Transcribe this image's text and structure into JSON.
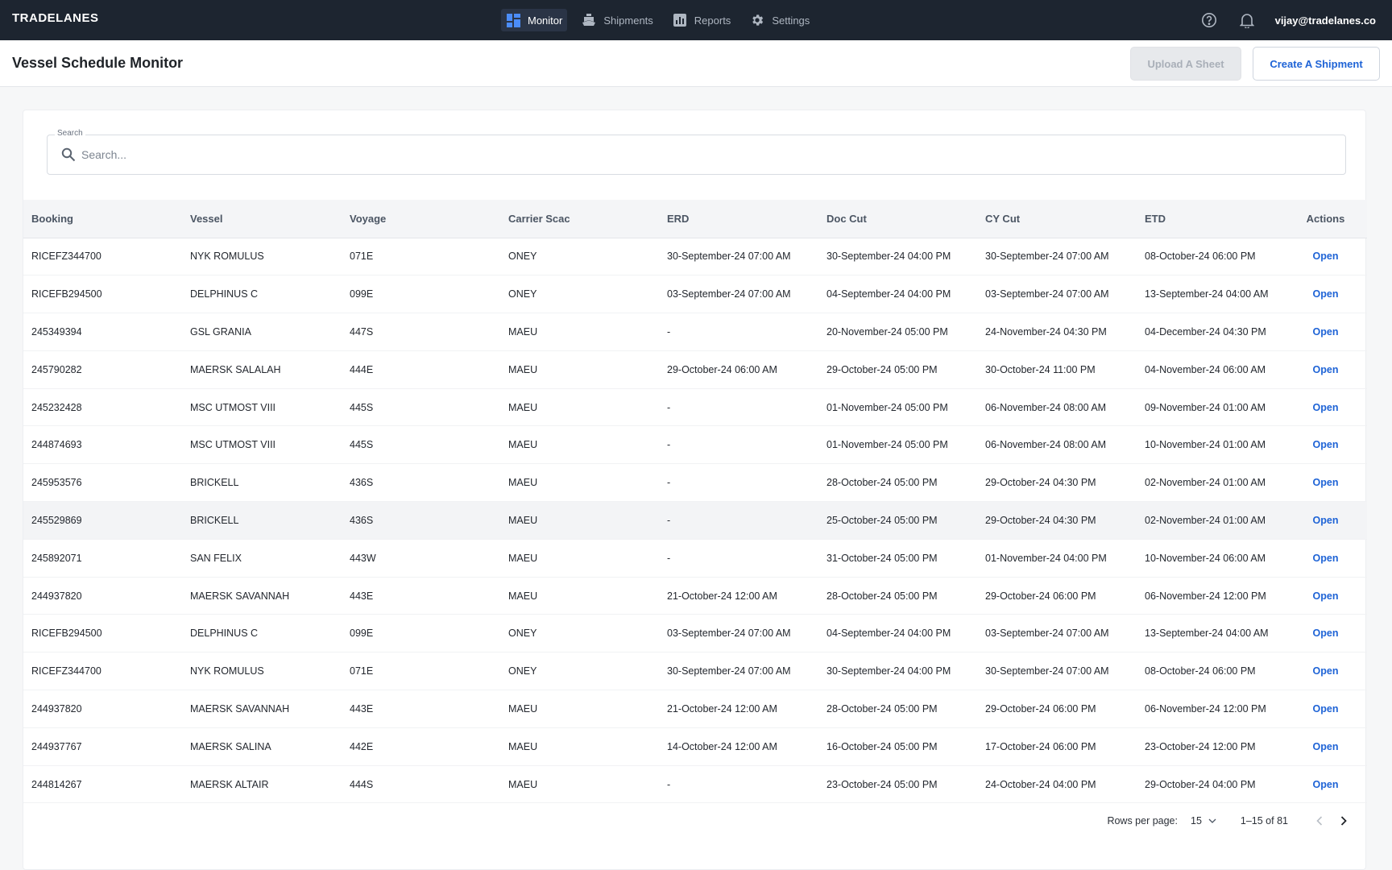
{
  "app": {
    "logo": "TRADELANES",
    "nav": [
      {
        "label": "Monitor",
        "icon": "dashboard-icon",
        "active": true
      },
      {
        "label": "Shipments",
        "icon": "ship-icon",
        "active": false
      },
      {
        "label": "Reports",
        "icon": "reports-icon",
        "active": false
      },
      {
        "label": "Settings",
        "icon": "gear-icon",
        "active": false
      }
    ],
    "user_email": "vijay@tradelanes.co"
  },
  "header": {
    "title": "Vessel Schedule Monitor",
    "upload_label": "Upload A Sheet",
    "create_label": "Create A Shipment"
  },
  "search": {
    "label": "Search",
    "placeholder": "Search...",
    "value": ""
  },
  "table": {
    "columns": [
      "Booking",
      "Vessel",
      "Voyage",
      "Carrier Scac",
      "ERD",
      "Doc Cut",
      "CY Cut",
      "ETD",
      "Actions"
    ],
    "action_label": "Open",
    "rows": [
      [
        "RICEFZ344700",
        "NYK ROMULUS",
        "071E",
        "ONEY",
        "30-September-24 07:00 AM",
        "30-September-24 04:00 PM",
        "30-September-24 07:00 AM",
        "08-October-24 06:00 PM"
      ],
      [
        "RICEFB294500",
        "DELPHINUS C",
        "099E",
        "ONEY",
        "03-September-24 07:00 AM",
        "04-September-24 04:00 PM",
        "03-September-24 07:00 AM",
        "13-September-24 04:00 AM"
      ],
      [
        "245349394",
        "GSL GRANIA",
        "447S",
        "MAEU",
        "-",
        "20-November-24 05:00 PM",
        "24-November-24 04:30 PM",
        "04-December-24 04:30 PM"
      ],
      [
        "245790282",
        "MAERSK SALALAH",
        "444E",
        "MAEU",
        "29-October-24 06:00 AM",
        "29-October-24 05:00 PM",
        "30-October-24 11:00 PM",
        "04-November-24 06:00 AM"
      ],
      [
        "245232428",
        "MSC UTMOST VIII",
        "445S",
        "MAEU",
        "-",
        "01-November-24 05:00 PM",
        "06-November-24 08:00 AM",
        "09-November-24 01:00 AM"
      ],
      [
        "244874693",
        "MSC UTMOST VIII",
        "445S",
        "MAEU",
        "-",
        "01-November-24 05:00 PM",
        "06-November-24 08:00 AM",
        "10-November-24 01:00 AM"
      ],
      [
        "245953576",
        "BRICKELL",
        "436S",
        "MAEU",
        "-",
        "28-October-24 05:00 PM",
        "29-October-24 04:30 PM",
        "02-November-24 01:00 AM"
      ],
      [
        "245529869",
        "BRICKELL",
        "436S",
        "MAEU",
        "-",
        "25-October-24 05:00 PM",
        "29-October-24 04:30 PM",
        "02-November-24 01:00 AM"
      ],
      [
        "245892071",
        "SAN FELIX",
        "443W",
        "MAEU",
        "-",
        "31-October-24 05:00 PM",
        "01-November-24 04:00 PM",
        "10-November-24 06:00 AM"
      ],
      [
        "244937820",
        "MAERSK SAVANNAH",
        "443E",
        "MAEU",
        "21-October-24 12:00 AM",
        "28-October-24 05:00 PM",
        "29-October-24 06:00 PM",
        "06-November-24 12:00 PM"
      ],
      [
        "RICEFB294500",
        "DELPHINUS C",
        "099E",
        "ONEY",
        "03-September-24 07:00 AM",
        "04-September-24 04:00 PM",
        "03-September-24 07:00 AM",
        "13-September-24 04:00 AM"
      ],
      [
        "RICEFZ344700",
        "NYK ROMULUS",
        "071E",
        "ONEY",
        "30-September-24 07:00 AM",
        "30-September-24 04:00 PM",
        "30-September-24 07:00 AM",
        "08-October-24 06:00 PM"
      ],
      [
        "244937820",
        "MAERSK SAVANNAH",
        "443E",
        "MAEU",
        "21-October-24 12:00 AM",
        "28-October-24 05:00 PM",
        "29-October-24 06:00 PM",
        "06-November-24 12:00 PM"
      ],
      [
        "244937767",
        "MAERSK SALINA",
        "442E",
        "MAEU",
        "14-October-24 12:00 AM",
        "16-October-24 05:00 PM",
        "17-October-24 06:00 PM",
        "23-October-24 12:00 PM"
      ],
      [
        "244814267",
        "MAERSK ALTAIR",
        "444S",
        "MAEU",
        "-",
        "23-October-24 05:00 PM",
        "24-October-24 04:00 PM",
        "29-October-24 04:00 PM"
      ]
    ],
    "highlighted_row": 7
  },
  "pagination": {
    "rows_per_page_label": "Rows per page:",
    "rows_per_page": "15",
    "range": "1–15 of 81"
  },
  "colors": {
    "topbar": "#1d2530",
    "accent": "#1e63d6",
    "active_icon": "#4b8cf7"
  }
}
